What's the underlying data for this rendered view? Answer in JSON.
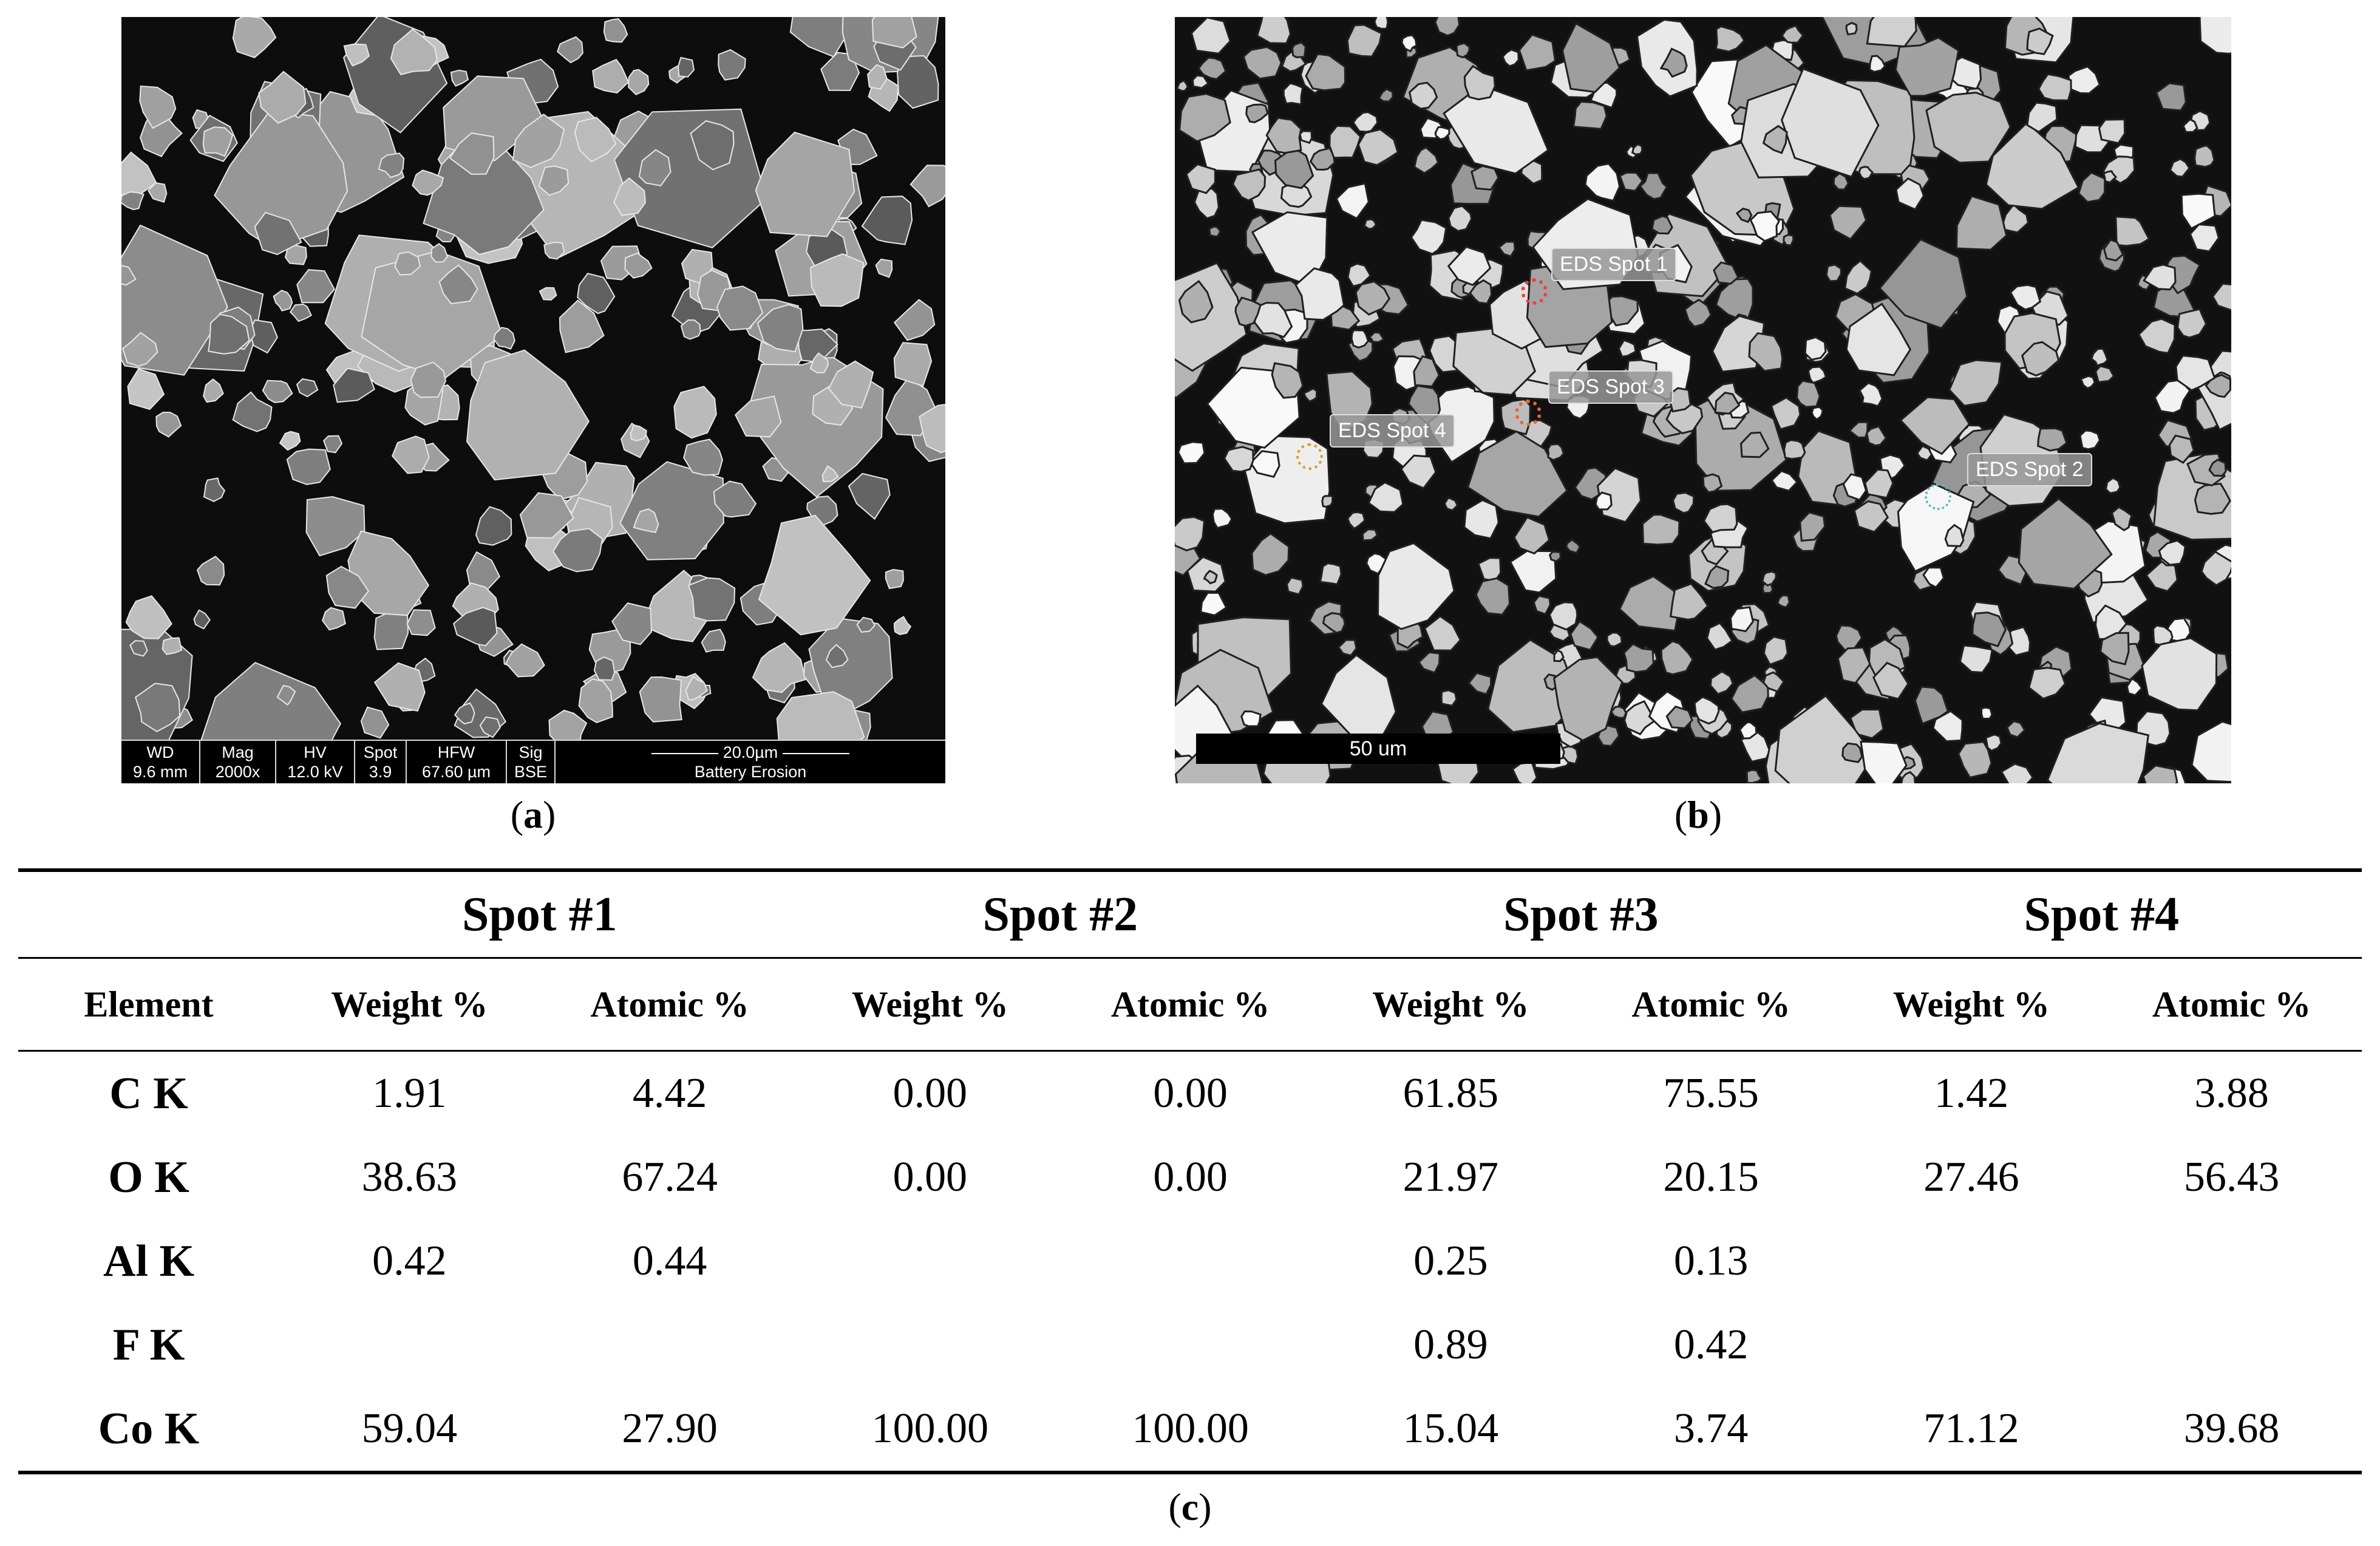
{
  "panel_a": {
    "caption_letter": "a",
    "info_bar": {
      "headers": [
        "WD",
        "Mag",
        "HV",
        "Spot",
        "HFW",
        "Sig"
      ],
      "values": [
        "9.6 mm",
        "2000x",
        "12.0 kV",
        "3.9",
        "67.60 µm",
        "BSE"
      ],
      "scale_label": "20.0µm",
      "description": "Battery Erosion"
    }
  },
  "panel_b": {
    "caption_letter": "b",
    "spots": [
      {
        "label": "EDS Spot 1",
        "color": "#e84343"
      },
      {
        "label": "EDS Spot 2",
        "color": "#5fb7b7"
      },
      {
        "label": "EDS Spot 3",
        "color": "#e06a3c"
      },
      {
        "label": "EDS Spot 4",
        "color": "#d9a030"
      }
    ],
    "scale_label": "50 um"
  },
  "table": {
    "caption_letter": "c",
    "spot_headers": [
      "Spot #1",
      "Spot #2",
      "Spot #3",
      "Spot #4"
    ],
    "column_headers": [
      "Element",
      "Weight %",
      "Atomic %",
      "Weight %",
      "Atomic %",
      "Weight %",
      "Atomic %",
      "Weight %",
      "Atomic %"
    ],
    "rows": [
      {
        "element": "C K",
        "values": [
          "1.91",
          "4.42",
          "0.00",
          "0.00",
          "61.85",
          "75.55",
          "1.42",
          "3.88"
        ]
      },
      {
        "element": "O K",
        "values": [
          "38.63",
          "67.24",
          "0.00",
          "0.00",
          "21.97",
          "20.15",
          "27.46",
          "56.43"
        ]
      },
      {
        "element": "Al K",
        "values": [
          "0.42",
          "0.44",
          "",
          "",
          "0.25",
          "0.13",
          "",
          ""
        ]
      },
      {
        "element": "F K",
        "values": [
          "",
          "",
          "",
          "",
          "0.89",
          "0.42",
          "",
          ""
        ]
      },
      {
        "element": "Co K",
        "values": [
          "59.04",
          "27.90",
          "100.00",
          "100.00",
          "15.04",
          "3.74",
          "71.12",
          "39.68"
        ]
      }
    ]
  }
}
